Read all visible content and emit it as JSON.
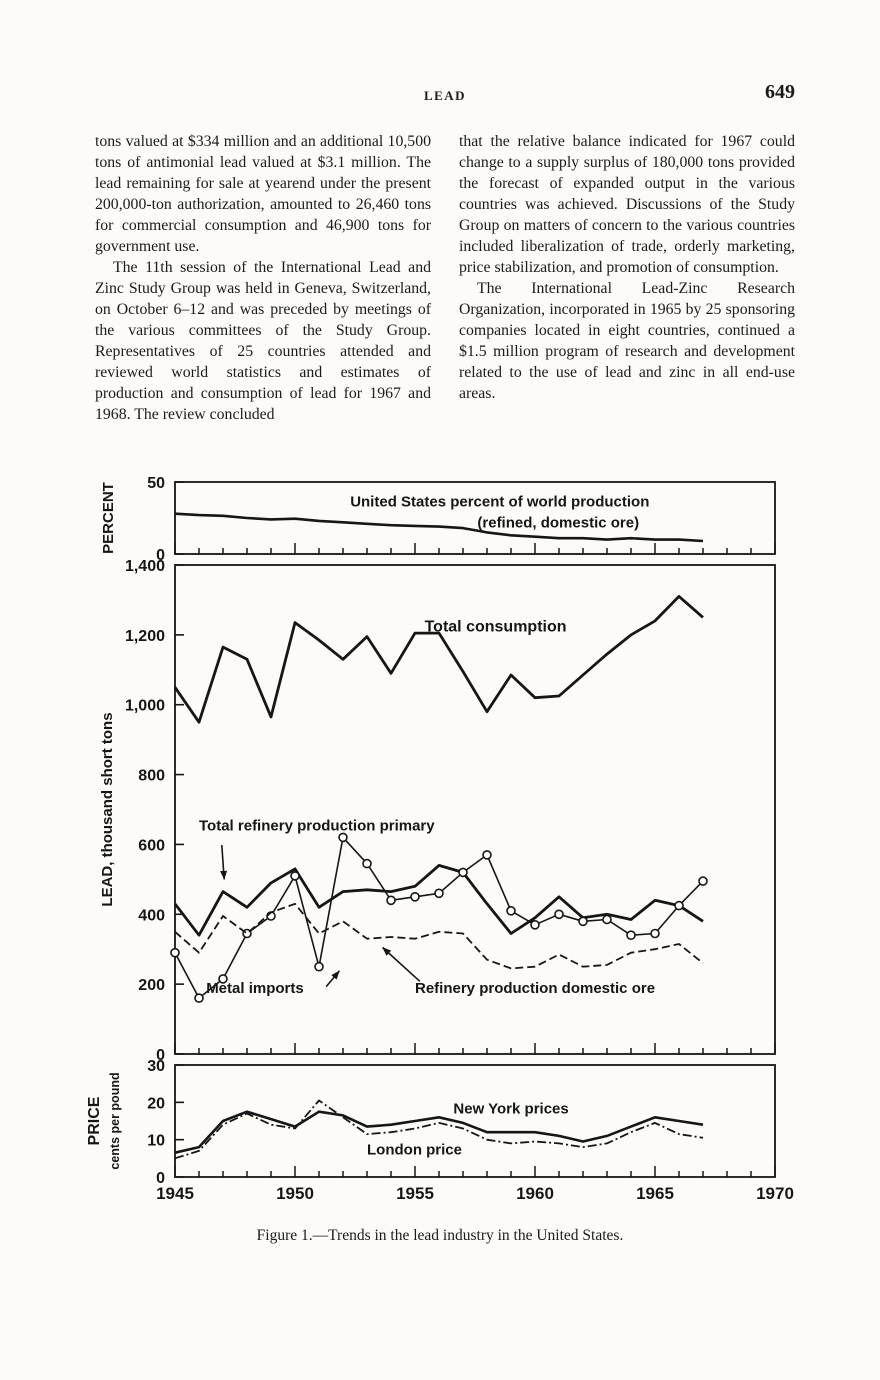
{
  "header": {
    "title": "LEAD",
    "page_number": "649"
  },
  "columns": {
    "left": [
      "tons valued at $334 million and an additional 10,500 tons of antimonial lead valued at $3.1 million. The lead remaining for sale at yearend under the present 200,000-ton authorization, amounted to 26,460 tons for commercial consumption and 46,900 tons for government use.",
      "The 11th session of the International Lead and Zinc Study Group was held in Geneva, Switzerland, on October 6–12 and was preceded by meetings of the various committees of the Study Group. Representatives of 25 countries attended and reviewed world statistics and estimates of production and consumption of lead for 1967 and 1968. The review concluded"
    ],
    "right": [
      "that the relative balance indicated for 1967 could change to a supply surplus of 180,000 tons provided the forecast of expanded output in the various countries was achieved. Discussions of the Study Group on matters of concern to the various countries included liberalization of trade, orderly marketing, price stabilization, and promotion of consumption.",
      "The International Lead-Zinc Research Organization, incorporated in 1965 by 25 sponsoring companies located in eight countries, continued a $1.5 million program of research and development related to the use of lead and zinc in all end-use areas."
    ]
  },
  "caption": "Figure 1.—Trends in the lead industry in the United States.",
  "chart_data": [
    {
      "type": "line",
      "title": "United States percent of world production (refined, domestic ore)",
      "ylabel": "PERCENT",
      "ylabel_x": 113,
      "ylabel_size": 15,
      "ylim": [
        0,
        50
      ],
      "yticks": [
        {
          "v": 50,
          "label": "50"
        },
        {
          "v": 0,
          "label": "0"
        }
      ],
      "x": [
        1945,
        1946,
        1947,
        1948,
        1949,
        1950,
        1951,
        1952,
        1953,
        1954,
        1955,
        1956,
        1957,
        1958,
        1959,
        1960,
        1961,
        1962,
        1963,
        1964,
        1965,
        1966,
        1967
      ],
      "series": [
        {
          "name": "United States percent of world production",
          "width": 2.6,
          "values": [
            28,
            27,
            26.5,
            25,
            24,
            24.5,
            23,
            22,
            21,
            20,
            19.5,
            19,
            18,
            15,
            13,
            12,
            11,
            11,
            10,
            11,
            10,
            10,
            9
          ]
        }
      ],
      "annotations": [
        {
          "text": "United States percent of world production",
          "x": 1952.3,
          "y": 33,
          "size": 15
        },
        {
          "text": "(refined, domestic ore)",
          "x": 1957.6,
          "y": 18.5,
          "size": 15
        }
      ]
    },
    {
      "type": "line",
      "ylabel": "LEAD, thousand short tons",
      "ylabel_x": 112,
      "ylabel_size": 15,
      "ylim": [
        0,
        1400
      ],
      "yticks": [
        {
          "v": 1400,
          "label": "1,400"
        },
        {
          "v": 1200,
          "label": "1,200"
        },
        {
          "v": 1000,
          "label": "1,000"
        },
        {
          "v": 800,
          "label": "800"
        },
        {
          "v": 600,
          "label": "600"
        },
        {
          "v": 400,
          "label": "400"
        },
        {
          "v": 200,
          "label": "200"
        },
        {
          "v": 0,
          "label": "0"
        }
      ],
      "x": [
        1945,
        1946,
        1947,
        1948,
        1949,
        1950,
        1951,
        1952,
        1953,
        1954,
        1955,
        1956,
        1957,
        1958,
        1959,
        1960,
        1961,
        1962,
        1963,
        1964,
        1965,
        1966,
        1967
      ],
      "series": [
        {
          "name": "Total consumption",
          "width": 2.8,
          "values": [
            1050,
            950,
            1165,
            1130,
            965,
            1235,
            1185,
            1130,
            1195,
            1090,
            1205,
            1205,
            1095,
            980,
            1085,
            1020,
            1025,
            1085,
            1145,
            1200,
            1240,
            1310,
            1250
          ]
        },
        {
          "name": "Total refinery production primary",
          "width": 2.8,
          "values": [
            430,
            340,
            465,
            420,
            490,
            530,
            420,
            465,
            470,
            465,
            480,
            540,
            520,
            430,
            345,
            390,
            450,
            390,
            400,
            385,
            440,
            425,
            380
          ]
        },
        {
          "name": "Metal imports",
          "width": 1.6,
          "marker": "circle",
          "values": [
            290,
            160,
            215,
            345,
            395,
            510,
            250,
            620,
            545,
            440,
            450,
            460,
            520,
            570,
            410,
            370,
            400,
            380,
            385,
            340,
            345,
            425,
            495
          ]
        },
        {
          "name": "Refinery production domestic ore",
          "width": 1.8,
          "dash": "8 4",
          "values": [
            350,
            290,
            395,
            345,
            405,
            430,
            345,
            380,
            330,
            335,
            330,
            350,
            345,
            270,
            245,
            250,
            285,
            250,
            255,
            290,
            300,
            315,
            260
          ]
        }
      ],
      "annotations": [
        {
          "text": "Total consumption",
          "x": 1955.4,
          "y": 1210,
          "size": 16
        },
        {
          "text": "Total refinery production primary",
          "x": 1946.0,
          "y": 640,
          "size": 15
        },
        {
          "text": "Metal imports",
          "x": 1946.3,
          "y": 175,
          "size": 15
        },
        {
          "text": "Refinery production domestic ore",
          "x": 1955.0,
          "y": 175,
          "size": 15
        }
      ],
      "arrows": [
        {
          "x1": 1946.95,
          "y1": 598,
          "x2": 1947.05,
          "y2": 500
        },
        {
          "x1": 1951.3,
          "y1": 193,
          "x2": 1951.85,
          "y2": 238
        },
        {
          "x1": 1955.2,
          "y1": 208,
          "x2": 1953.65,
          "y2": 305
        }
      ]
    },
    {
      "type": "line",
      "ylabel": "PRICE",
      "ylabel_x": 99,
      "ylabel_size": 16,
      "ylabel2": "cents per pound",
      "ylabel2_x": 119,
      "ylim": [
        0,
        30
      ],
      "yticks": [
        {
          "v": 30,
          "label": "30"
        },
        {
          "v": 20,
          "label": "20"
        },
        {
          "v": 10,
          "label": "10"
        },
        {
          "v": 0,
          "label": "0"
        }
      ],
      "x": [
        1945,
        1946,
        1947,
        1948,
        1949,
        1950,
        1951,
        1952,
        1953,
        1954,
        1955,
        1956,
        1957,
        1958,
        1959,
        1960,
        1961,
        1962,
        1963,
        1964,
        1965,
        1966,
        1967
      ],
      "series": [
        {
          "name": "New York prices",
          "width": 2.6,
          "values": [
            6.5,
            8,
            15,
            17.5,
            15.5,
            13.5,
            17.5,
            16.5,
            13.5,
            14,
            15,
            16,
            14.5,
            12,
            12,
            12,
            11,
            9.5,
            11,
            13.5,
            16,
            15,
            14
          ]
        },
        {
          "name": "London price",
          "width": 1.8,
          "dash": "9 3 2 3",
          "values": [
            5,
            7,
            14,
            17,
            14,
            13,
            20.5,
            16,
            11.5,
            12,
            13,
            14.5,
            13,
            10,
            9,
            9.5,
            9,
            8,
            9,
            12,
            14.5,
            11.5,
            10.5
          ]
        }
      ],
      "annotations": [
        {
          "text": "New York prices",
          "x": 1956.6,
          "y": 17,
          "size": 15
        },
        {
          "text": "London price",
          "x": 1953.0,
          "y": 6,
          "size": 15
        }
      ],
      "xtick_labels": [
        "1945",
        "1950",
        "1955",
        "1960",
        "1965",
        "1970"
      ]
    }
  ]
}
